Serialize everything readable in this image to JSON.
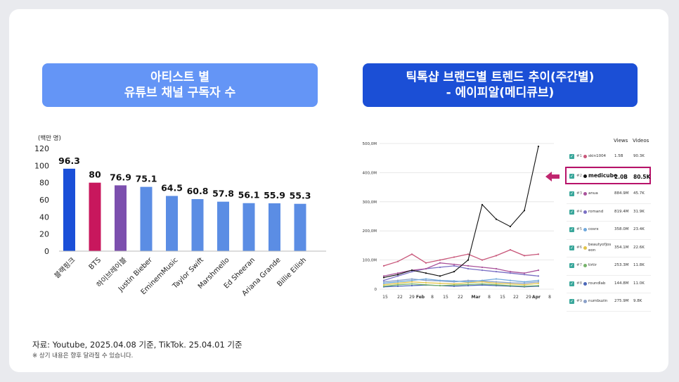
{
  "left_title": {
    "line1": "아티스트 별",
    "line2": "유튜브 채널 구독자 수"
  },
  "right_title": {
    "line1": "틱톡샵 브랜드별 트렌드 추이(주간별)",
    "line2": "- 에이피알(메디큐브)"
  },
  "chart_data": [
    {
      "type": "bar",
      "ylabel": "(백만 명)",
      "ylim": [
        0,
        120
      ],
      "yticks": [
        "0",
        "20",
        "40",
        "60",
        "80",
        "100",
        "120"
      ],
      "categories": [
        "블랙핑크",
        "BTS",
        "하이브레이블",
        "Justin Bieber",
        "EminemMusic",
        "Taylor Swift",
        "Marshmello",
        "Ed Sheeran",
        "Ariana Grande",
        "Billie Eilish"
      ],
      "values": [
        96.3,
        80,
        76.9,
        75.1,
        64.5,
        60.8,
        57.8,
        56.1,
        55.9,
        55.3
      ],
      "value_labels": [
        "96.3",
        "80",
        "76.9",
        "75.1",
        "64.5",
        "60.8",
        "57.8",
        "56.1",
        "55.9",
        "55.3"
      ],
      "colors": [
        "#1a4fd8",
        "#c8175d",
        "#7c4fae",
        "#5b8de4",
        "#5b8de4",
        "#5b8de4",
        "#5b8de4",
        "#5b8de4",
        "#5b8de4",
        "#5b8de4"
      ]
    },
    {
      "type": "line",
      "ylim": [
        0,
        500
      ],
      "yticks": [
        "0",
        "100,0M",
        "200,0M",
        "300,0M",
        "400,0M",
        "500,0M"
      ],
      "xticks": [
        "15",
        "22",
        "29",
        "Feb",
        "8",
        "15",
        "22",
        "Mar",
        "8",
        "15",
        "22",
        "29",
        "Apr",
        "8"
      ],
      "series": [
        {
          "name": "medicube",
          "color": "#111111",
          "values": [
            40,
            50,
            65,
            55,
            45,
            60,
            100,
            290,
            240,
            215,
            270,
            490
          ]
        },
        {
          "name": "skin1004",
          "color": "#c8577a",
          "values": [
            80,
            95,
            120,
            90,
            100,
            110,
            120,
            100,
            115,
            135,
            115,
            120
          ]
        },
        {
          "name": "anua",
          "color": "#a9529a",
          "values": [
            45,
            55,
            65,
            70,
            90,
            85,
            80,
            75,
            70,
            60,
            55,
            65
          ]
        },
        {
          "name": "romand",
          "color": "#7a6fc4",
          "values": [
            30,
            45,
            60,
            70,
            75,
            80,
            70,
            65,
            60,
            55,
            50,
            45
          ]
        },
        {
          "name": "cosrx",
          "color": "#6fa8dc",
          "values": [
            20,
            25,
            30,
            35,
            30,
            28,
            25,
            30,
            35,
            30,
            25,
            30
          ]
        },
        {
          "name": "beautyofjoseon",
          "color": "#e2c44a",
          "values": [
            15,
            20,
            25,
            22,
            20,
            18,
            22,
            25,
            20,
            18,
            15,
            20
          ]
        },
        {
          "name": "tirtir",
          "color": "#76b36b",
          "values": [
            10,
            15,
            18,
            15,
            12,
            14,
            16,
            18,
            15,
            12,
            10,
            12
          ]
        },
        {
          "name": "roundlab",
          "color": "#4b67b8",
          "values": [
            8,
            10,
            12,
            14,
            12,
            10,
            12,
            14,
            12,
            10,
            8,
            10
          ]
        },
        {
          "name": "numbuzin",
          "color": "#8aa0c8",
          "values": [
            25,
            30,
            35,
            30,
            28,
            25,
            30,
            28,
            25,
            22,
            20,
            25
          ]
        }
      ]
    }
  ],
  "table": {
    "headers": {
      "views": "Views",
      "videos": "Videos"
    },
    "rows": [
      {
        "rank": "#1",
        "name": "skin1004",
        "views": "1.5B",
        "videos": "90.3K",
        "color": "#c8577a"
      },
      {
        "rank": "#2",
        "name": "medicube",
        "views": "2.0B",
        "videos": "80.5K",
        "color": "#111111"
      },
      {
        "rank": "#3",
        "name": "anua",
        "views": "884.9M",
        "videos": "45.7K",
        "color": "#a9529a"
      },
      {
        "rank": "#4",
        "name": "romand",
        "views": "819.4M",
        "videos": "31.9K",
        "color": "#7a6fc4"
      },
      {
        "rank": "#5",
        "name": "cosrx",
        "views": "358.0M",
        "videos": "23.4K",
        "color": "#6fa8dc"
      },
      {
        "rank": "#6",
        "name": "beautyofjos eon",
        "views": "354.1M",
        "videos": "22.6K",
        "color": "#e2c44a"
      },
      {
        "rank": "#7",
        "name": "tirtir",
        "views": "253.3M",
        "videos": "11.8K",
        "color": "#76b36b"
      },
      {
        "rank": "#8",
        "name": "roundlab",
        "views": "144.8M",
        "videos": "11.0K",
        "color": "#4b67b8"
      },
      {
        "rank": "#9",
        "name": "numbuzin",
        "views": "275.9M",
        "videos": "9.8K",
        "color": "#8aa0c8"
      }
    ]
  },
  "source": "자료: Youtube, 2025.04.08 기준, TikTok. 25.04.01 기준",
  "note": "※ 상기 내용은 향후 달라질 수 있습니다."
}
